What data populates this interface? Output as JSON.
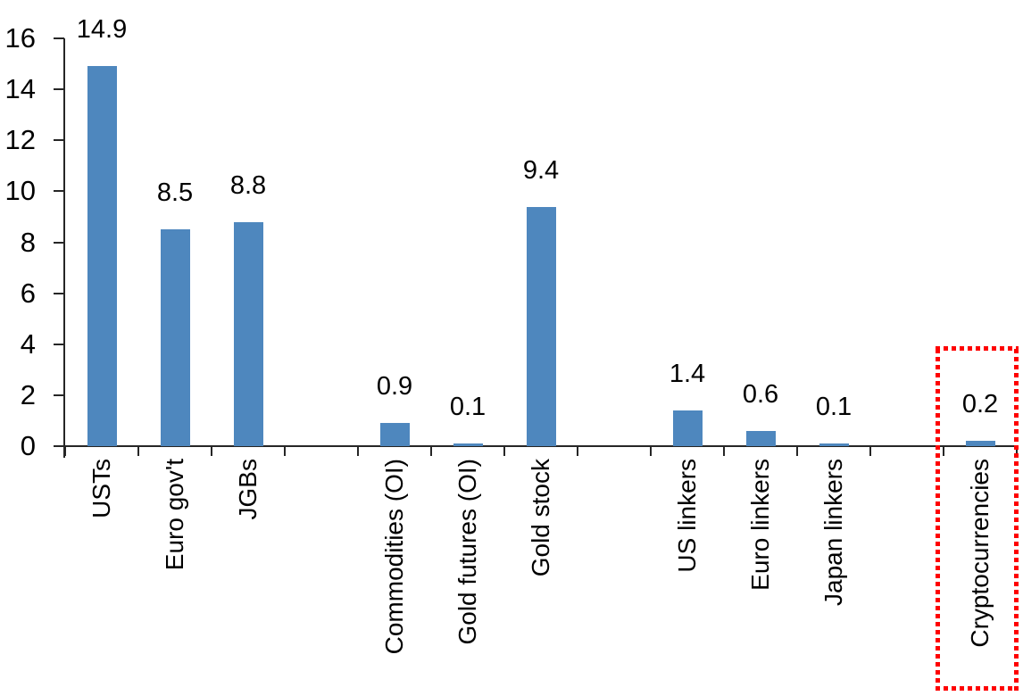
{
  "chart_data": {
    "type": "bar",
    "title": "",
    "xlabel": "",
    "ylabel": "",
    "ylim": [
      0,
      16
    ],
    "grid": false,
    "legend": null,
    "y_axis": {
      "ticks": [
        0,
        2,
        4,
        6,
        8,
        10,
        12,
        14,
        16
      ]
    },
    "n_slots": 13,
    "bar_color": "#4E87BE",
    "axis_color": "#262626",
    "text_color": "#000000",
    "highlight_color": "#FE0000",
    "categories": [
      "USTs",
      "Euro gov't",
      "JGBs",
      "Commodities (OI)",
      "Gold futures (OI)",
      "Gold stock",
      "US linkers",
      "Euro linkers",
      "Japan linkers",
      "Cryptocurrencies"
    ],
    "values": [
      14.9,
      8.5,
      8.8,
      0.9,
      0.1,
      9.4,
      1.4,
      0.6,
      0.1,
      0.2
    ],
    "bars": [
      {
        "label": "USTs",
        "value": 14.9,
        "display": "14.9",
        "slot": 0,
        "highlighted": false
      },
      {
        "label": "Euro gov't",
        "value": 8.5,
        "display": "8.5",
        "slot": 1,
        "highlighted": false
      },
      {
        "label": "JGBs",
        "value": 8.8,
        "display": "8.8",
        "slot": 2,
        "highlighted": false
      },
      {
        "label": "Commodities (OI)",
        "value": 0.9,
        "display": "0.9",
        "slot": 4,
        "highlighted": false
      },
      {
        "label": "Gold futures (OI)",
        "value": 0.1,
        "display": "0.1",
        "slot": 5,
        "highlighted": false
      },
      {
        "label": "Gold stock",
        "value": 9.4,
        "display": "9.4",
        "slot": 6,
        "highlighted": false
      },
      {
        "label": "US linkers",
        "value": 1.4,
        "display": "1.4",
        "slot": 8,
        "highlighted": false
      },
      {
        "label": "Euro linkers",
        "value": 0.6,
        "display": "0.6",
        "slot": 9,
        "highlighted": false
      },
      {
        "label": "Japan linkers",
        "value": 0.1,
        "display": "0.1",
        "slot": 10,
        "highlighted": false
      },
      {
        "label": "Cryptocurrencies",
        "value": 0.2,
        "display": "0.2",
        "slot": 12,
        "highlighted": true
      }
    ]
  }
}
